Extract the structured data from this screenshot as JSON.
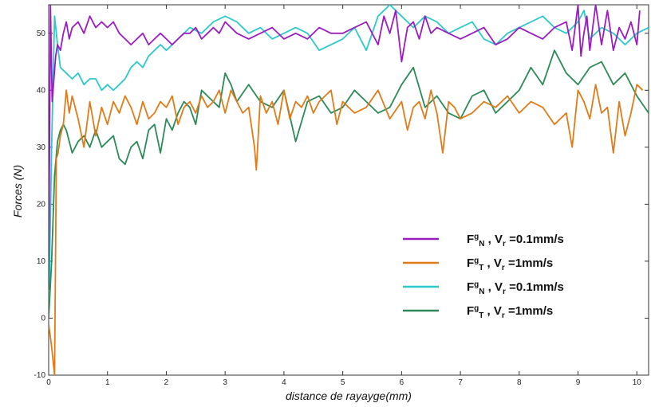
{
  "chart_data": {
    "type": "line",
    "title": "",
    "xlabel": "distance de rayayge(mm)",
    "ylabel": "Forces (N)",
    "xlim": [
      0,
      10.2
    ],
    "ylim": [
      -10,
      55
    ],
    "x_ticks": [
      "0",
      "1",
      "2",
      "3",
      "4",
      "5",
      "6",
      "7",
      "8",
      "9",
      "10"
    ],
    "y_ticks": [
      "-10",
      "0",
      "10",
      "20",
      "30",
      "40",
      "50"
    ],
    "grid": false,
    "legend_position": "bottom-right",
    "series": [
      {
        "name": "FᵍN , Vr =0.1mm/s",
        "legend": {
          "base": "F",
          "sup": "g",
          "sub": "N",
          "rest1": " , V",
          "rsub": "r",
          "rest2": " =0.1mm/s"
        },
        "color": "#9b1cc0",
        "x": [
          0,
          0.03,
          0.06,
          0.09,
          0.12,
          0.15,
          0.2,
          0.25,
          0.3,
          0.35,
          0.4,
          0.5,
          0.6,
          0.7,
          0.8,
          0.9,
          1.0,
          1.1,
          1.2,
          1.3,
          1.4,
          1.5,
          1.6,
          1.7,
          1.8,
          1.9,
          2.0,
          2.1,
          2.2,
          2.3,
          2.4,
          2.5,
          2.6,
          2.7,
          2.8,
          2.9,
          3.0,
          3.2,
          3.4,
          3.6,
          3.8,
          4.0,
          4.2,
          4.4,
          4.6,
          4.8,
          5.0,
          5.2,
          5.4,
          5.6,
          5.7,
          5.8,
          5.9,
          6.0,
          6.1,
          6.2,
          6.3,
          6.4,
          6.5,
          6.6,
          6.8,
          7.0,
          7.2,
          7.4,
          7.6,
          7.8,
          8.0,
          8.2,
          8.4,
          8.6,
          8.8,
          8.9,
          9.0,
          9.05,
          9.1,
          9.15,
          9.2,
          9.3,
          9.4,
          9.5,
          9.6,
          9.7,
          9.8,
          9.9,
          10.0,
          10.05
        ],
        "y": [
          5,
          55,
          38,
          42,
          46,
          48,
          47,
          50,
          52,
          49,
          51,
          52,
          50,
          53,
          51,
          52,
          51,
          52,
          50,
          49,
          48,
          49,
          50,
          48,
          49,
          50,
          49,
          48,
          49,
          50,
          50,
          51,
          49,
          50,
          51,
          50,
          52,
          50,
          49,
          50,
          51,
          49,
          50,
          49,
          51,
          50,
          50,
          51,
          52,
          48,
          53,
          50,
          54,
          45,
          51,
          52,
          49,
          53,
          50,
          51,
          50,
          49,
          50,
          51,
          48,
          49,
          51,
          50,
          49,
          51,
          52,
          47,
          55,
          46,
          50,
          53,
          47,
          55,
          48,
          54,
          47,
          51,
          49,
          52,
          48,
          54
        ]
      },
      {
        "name": "FᵍT , Vr =1mm/s",
        "legend": {
          "base": "F",
          "sup": "g",
          "sub": "T",
          "rest1": "  , V",
          "rsub": "r",
          "rest2": " =1mm/s"
        },
        "color": "#e07b18",
        "x": [
          0,
          0.05,
          0.1,
          0.13,
          0.16,
          0.2,
          0.25,
          0.3,
          0.35,
          0.4,
          0.5,
          0.6,
          0.7,
          0.8,
          0.9,
          1.0,
          1.1,
          1.2,
          1.3,
          1.4,
          1.5,
          1.6,
          1.7,
          1.8,
          1.9,
          2.0,
          2.1,
          2.2,
          2.3,
          2.4,
          2.5,
          2.6,
          2.7,
          2.8,
          2.9,
          3.0,
          3.1,
          3.2,
          3.3,
          3.4,
          3.5,
          3.53,
          3.6,
          3.7,
          3.8,
          3.9,
          4.0,
          4.1,
          4.2,
          4.3,
          4.4,
          4.5,
          4.6,
          4.7,
          4.8,
          4.9,
          5.0,
          5.2,
          5.4,
          5.6,
          5.8,
          6.0,
          6.1,
          6.2,
          6.3,
          6.4,
          6.5,
          6.6,
          6.7,
          6.8,
          6.9,
          7.0,
          7.2,
          7.4,
          7.6,
          7.8,
          8.0,
          8.2,
          8.4,
          8.6,
          8.8,
          8.9,
          9.0,
          9.1,
          9.2,
          9.3,
          9.4,
          9.5,
          9.6,
          9.7,
          9.8,
          9.9,
          10.0,
          10.1
        ],
        "y": [
          -1,
          -5,
          -10,
          28,
          29,
          32,
          34,
          40,
          36,
          39,
          35,
          30,
          38,
          32,
          37,
          34,
          38,
          36,
          39,
          37,
          34,
          38,
          35,
          36,
          38,
          37,
          39,
          34,
          37,
          38,
          36,
          39,
          37,
          38,
          40,
          36,
          40,
          38,
          36,
          37,
          30,
          26,
          39,
          36,
          38,
          34,
          40,
          35,
          38,
          37,
          39,
          36,
          38,
          39,
          40,
          34,
          38,
          36,
          37,
          40,
          35,
          38,
          33,
          37,
          38,
          35,
          40,
          36,
          29,
          38,
          37,
          35,
          36,
          38,
          37,
          39,
          36,
          38,
          37,
          34,
          36,
          30,
          40,
          38,
          35,
          41,
          36,
          37,
          29,
          38,
          32,
          36,
          41,
          40
        ]
      },
      {
        "name": "FᵍN ,  Vr =0.1mm/s",
        "legend": {
          "base": "F",
          "sup": "g",
          "sub": "N",
          "rest1": " ,  V",
          "rsub": "r",
          "rest2": " =0.1mm/s"
        },
        "color": "#2cc9c9",
        "x": [
          0,
          0.05,
          0.1,
          0.15,
          0.2,
          0.3,
          0.4,
          0.5,
          0.6,
          0.7,
          0.8,
          0.9,
          1.0,
          1.1,
          1.2,
          1.3,
          1.4,
          1.5,
          1.6,
          1.7,
          1.8,
          1.9,
          2.0,
          2.2,
          2.4,
          2.6,
          2.8,
          3.0,
          3.2,
          3.4,
          3.6,
          3.8,
          4.0,
          4.2,
          4.4,
          4.6,
          4.8,
          5.0,
          5.2,
          5.4,
          5.6,
          5.8,
          6.0,
          6.2,
          6.4,
          6.6,
          6.8,
          7.0,
          7.2,
          7.4,
          7.6,
          7.8,
          8.0,
          8.2,
          8.4,
          8.6,
          8.8,
          9.0,
          9.1,
          9.2,
          9.4,
          9.6,
          9.8,
          10.0,
          10.2
        ],
        "y": [
          0,
          30,
          53,
          48,
          44,
          43,
          42,
          43,
          41,
          42,
          42,
          40,
          41,
          40,
          41,
          42,
          44,
          45,
          44,
          46,
          47,
          48,
          47,
          49,
          51,
          50,
          52,
          53,
          52,
          50,
          51,
          49,
          50,
          51,
          50,
          47,
          48,
          49,
          51,
          47,
          53,
          55,
          53,
          51,
          53,
          52,
          50,
          51,
          52,
          49,
          48,
          50,
          51,
          52,
          53,
          51,
          50,
          52,
          54,
          49,
          51,
          50,
          48,
          50,
          51
        ]
      },
      {
        "name": "FᵍT ,  Vr =1mm/s",
        "legend": {
          "base": "F",
          "sup": "g",
          "sub": "T",
          "rest1": " ,  V",
          "rsub": "r",
          "rest2": " =1mm/s"
        },
        "color": "#2b8a58",
        "x": [
          0,
          0.05,
          0.1,
          0.15,
          0.2,
          0.25,
          0.3,
          0.4,
          0.5,
          0.6,
          0.7,
          0.8,
          0.9,
          1.0,
          1.1,
          1.2,
          1.3,
          1.4,
          1.5,
          1.6,
          1.7,
          1.8,
          1.9,
          2.0,
          2.1,
          2.2,
          2.3,
          2.4,
          2.5,
          2.6,
          2.7,
          2.8,
          2.9,
          3.0,
          3.1,
          3.2,
          3.4,
          3.6,
          3.8,
          4.0,
          4.2,
          4.4,
          4.6,
          4.8,
          5.0,
          5.2,
          5.4,
          5.6,
          5.8,
          6.0,
          6.2,
          6.4,
          6.6,
          6.8,
          7.0,
          7.2,
          7.4,
          7.6,
          7.8,
          8.0,
          8.2,
          8.4,
          8.6,
          8.8,
          9.0,
          9.2,
          9.4,
          9.6,
          9.8,
          10.0,
          10.2
        ],
        "y": [
          0,
          10,
          25,
          31,
          33,
          34,
          33,
          29,
          31,
          32,
          30,
          33,
          30,
          31,
          32,
          28,
          27,
          30,
          31,
          28,
          33,
          34,
          29,
          35,
          33,
          36,
          38,
          37,
          34,
          40,
          39,
          38,
          37,
          43,
          41,
          38,
          41,
          38,
          37,
          40,
          31,
          38,
          39,
          36,
          37,
          40,
          38,
          36,
          37,
          41,
          44,
          37,
          39,
          36,
          35,
          39,
          40,
          36,
          38,
          40,
          44,
          41,
          47,
          43,
          41,
          44,
          45,
          41,
          43,
          39,
          36
        ]
      }
    ]
  }
}
